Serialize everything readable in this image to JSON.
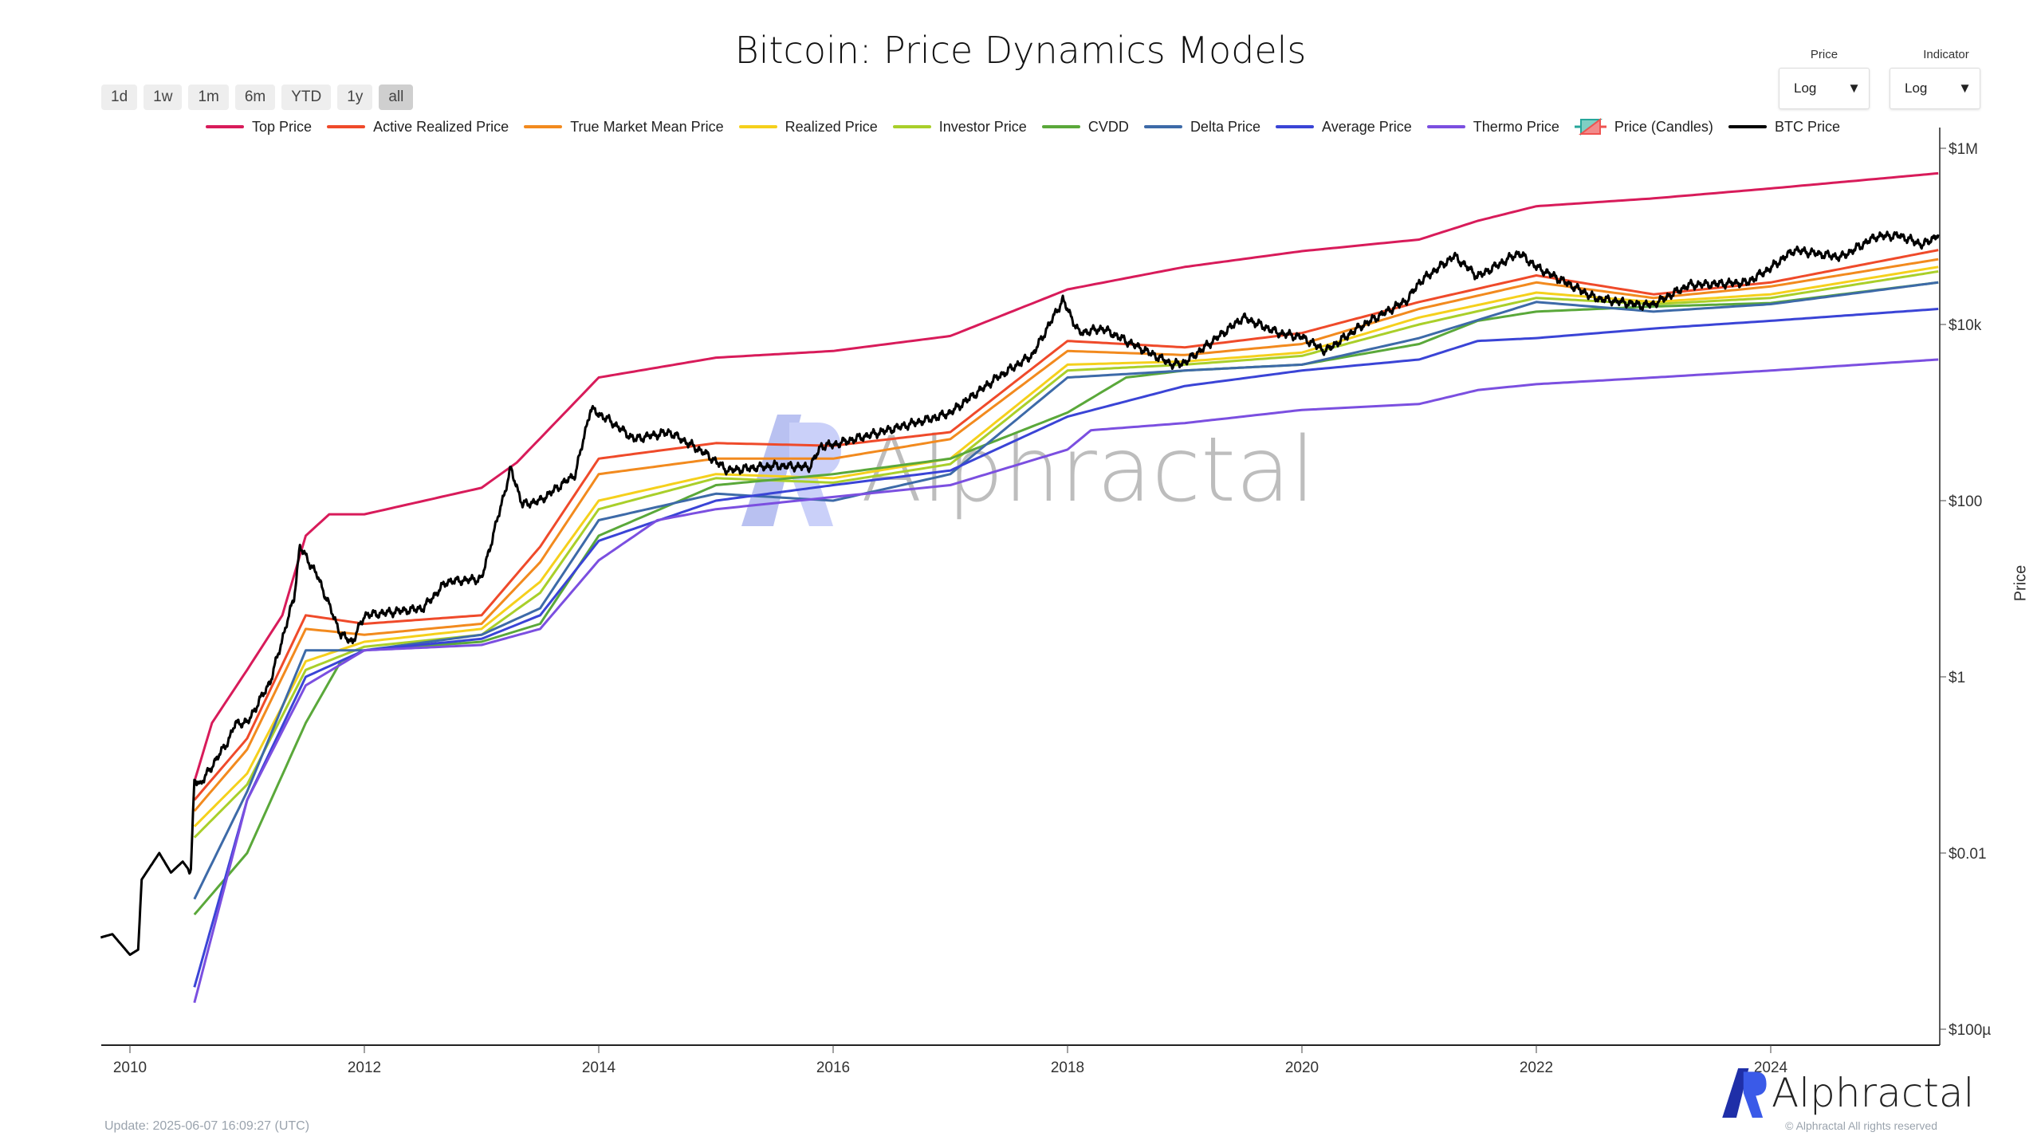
{
  "title": "Bitcoin: Price Dynamics Models",
  "range_buttons": [
    "1d",
    "1w",
    "1m",
    "6m",
    "YTD",
    "1y",
    "all"
  ],
  "active_range": "all",
  "dropdowns": {
    "price": {
      "label": "Price",
      "value": "Log"
    },
    "indicator": {
      "label": "Indicator",
      "value": "Log"
    }
  },
  "update_text": "Update: 2025-06-07 16:09:27 (UTC)",
  "copyright": "© Alphractal All rights reserved",
  "brand": "Alphractal",
  "colors": {
    "axis": "#222222",
    "accent": "#3a4fd8"
  },
  "chart_data": {
    "type": "line",
    "title": "Bitcoin: Price Dynamics Models",
    "xlabel": "",
    "ylabel": "Price",
    "yscale": "log",
    "xlim": [
      2009.72,
      2025.45
    ],
    "ylim": [
      7e-05,
      1500000
    ],
    "x_ticks": [
      {
        "value": 2010,
        "label": "2010"
      },
      {
        "value": 2012,
        "label": "2012"
      },
      {
        "value": 2014,
        "label": "2014"
      },
      {
        "value": 2016,
        "label": "2016"
      },
      {
        "value": 2018,
        "label": "2018"
      },
      {
        "value": 2020,
        "label": "2020"
      },
      {
        "value": 2022,
        "label": "2022"
      },
      {
        "value": 2024,
        "label": "2024"
      }
    ],
    "y_ticks": [
      {
        "value": 1000000,
        "label": "$1M"
      },
      {
        "value": 10000,
        "label": "$10k"
      },
      {
        "value": 100,
        "label": "$100"
      },
      {
        "value": 1,
        "label": "$1"
      },
      {
        "value": 0.01,
        "label": "$0.01"
      },
      {
        "value": 0.0001,
        "label": "$100µ"
      }
    ],
    "legend_position": "top",
    "series": [
      {
        "name": "Top Price",
        "color": "#d81b5a",
        "points": [
          [
            2010.55,
            0.065
          ],
          [
            2010.7,
            0.3
          ],
          [
            2011.0,
            1.2
          ],
          [
            2011.3,
            5
          ],
          [
            2011.5,
            40
          ],
          [
            2011.7,
            70
          ],
          [
            2012,
            70
          ],
          [
            2013,
            140
          ],
          [
            2013.3,
            270
          ],
          [
            2013.6,
            700
          ],
          [
            2014,
            2500
          ],
          [
            2015,
            4200
          ],
          [
            2016,
            5000
          ],
          [
            2017,
            7400
          ],
          [
            2018,
            25000
          ],
          [
            2019,
            45000
          ],
          [
            2020,
            68000
          ],
          [
            2021,
            92000
          ],
          [
            2021.5,
            150000
          ],
          [
            2022,
            220000
          ],
          [
            2023,
            270000
          ],
          [
            2024,
            350000
          ],
          [
            2025.43,
            520000
          ]
        ]
      },
      {
        "name": "Active Realized Price",
        "color": "#ef4a2a",
        "points": [
          [
            2010.55,
            0.04
          ],
          [
            2011,
            0.2
          ],
          [
            2011.5,
            5
          ],
          [
            2012,
            4
          ],
          [
            2013,
            5
          ],
          [
            2013.5,
            30
          ],
          [
            2014,
            300
          ],
          [
            2015,
            450
          ],
          [
            2016,
            420
          ],
          [
            2017,
            600
          ],
          [
            2018,
            6500
          ],
          [
            2019,
            5500
          ],
          [
            2020,
            8000
          ],
          [
            2021,
            18000
          ],
          [
            2022,
            36000
          ],
          [
            2023,
            22000
          ],
          [
            2024,
            30000
          ],
          [
            2025.43,
            70000
          ]
        ]
      },
      {
        "name": "True Market Mean Price",
        "color": "#f28a1e",
        "points": [
          [
            2010.55,
            0.03
          ],
          [
            2011,
            0.15
          ],
          [
            2011.5,
            3.5
          ],
          [
            2012,
            3
          ],
          [
            2013,
            4
          ],
          [
            2013.5,
            20
          ],
          [
            2014,
            200
          ],
          [
            2015,
            300
          ],
          [
            2016,
            300
          ],
          [
            2017,
            500
          ],
          [
            2018,
            5000
          ],
          [
            2019,
            4500
          ],
          [
            2020,
            6000
          ],
          [
            2021,
            15000
          ],
          [
            2022,
            30000
          ],
          [
            2023,
            20000
          ],
          [
            2024,
            27000
          ],
          [
            2025.43,
            55000
          ]
        ]
      },
      {
        "name": "Realized Price",
        "color": "#f5d01c",
        "points": [
          [
            2010.55,
            0.02
          ],
          [
            2011,
            0.08
          ],
          [
            2011.5,
            1.5
          ],
          [
            2012,
            2.5
          ],
          [
            2013,
            3.5
          ],
          [
            2013.5,
            12
          ],
          [
            2014,
            100
          ],
          [
            2015,
            200
          ],
          [
            2016,
            180
          ],
          [
            2017,
            300
          ],
          [
            2018,
            3500
          ],
          [
            2019,
            3800
          ],
          [
            2020,
            4800
          ],
          [
            2021,
            12000
          ],
          [
            2022,
            23000
          ],
          [
            2023,
            18000
          ],
          [
            2024,
            22000
          ],
          [
            2025.43,
            45000
          ]
        ]
      },
      {
        "name": "Investor Price",
        "color": "#a9cf2a",
        "points": [
          [
            2010.55,
            0.015
          ],
          [
            2011,
            0.06
          ],
          [
            2011.5,
            1.2
          ],
          [
            2012,
            2.2
          ],
          [
            2013,
            3
          ],
          [
            2013.5,
            9
          ],
          [
            2014,
            80
          ],
          [
            2015,
            180
          ],
          [
            2016,
            160
          ],
          [
            2017,
            260
          ],
          [
            2018,
            3000
          ],
          [
            2019,
            3500
          ],
          [
            2020,
            4400
          ],
          [
            2021,
            10000
          ],
          [
            2022,
            20000
          ],
          [
            2023,
            17000
          ],
          [
            2024,
            20000
          ],
          [
            2025.43,
            40000
          ]
        ]
      },
      {
        "name": "CVDD",
        "color": "#5aa83a",
        "points": [
          [
            2010.55,
            0.002
          ],
          [
            2011,
            0.01
          ],
          [
            2011.5,
            0.3
          ],
          [
            2011.8,
            1.5
          ],
          [
            2012,
            2
          ],
          [
            2013,
            2.5
          ],
          [
            2013.5,
            4
          ],
          [
            2014,
            40
          ],
          [
            2015,
            150
          ],
          [
            2016,
            200
          ],
          [
            2017,
            300
          ],
          [
            2018,
            1000
          ],
          [
            2018.5,
            2500
          ],
          [
            2019,
            3000
          ],
          [
            2020,
            3500
          ],
          [
            2021,
            6000
          ],
          [
            2021.5,
            11000
          ],
          [
            2022,
            14000
          ],
          [
            2023,
            16000
          ],
          [
            2024,
            17500
          ],
          [
            2025.43,
            30000
          ]
        ]
      },
      {
        "name": "Delta Price",
        "color": "#3d6aa8",
        "points": [
          [
            2010.55,
            0.003
          ],
          [
            2011,
            0.05
          ],
          [
            2011.5,
            2
          ],
          [
            2012,
            2
          ],
          [
            2013,
            3
          ],
          [
            2013.5,
            6
          ],
          [
            2014,
            60
          ],
          [
            2015,
            120
          ],
          [
            2016,
            100
          ],
          [
            2017,
            200
          ],
          [
            2018,
            2500
          ],
          [
            2019,
            3000
          ],
          [
            2020,
            3500
          ],
          [
            2021,
            7000
          ],
          [
            2022,
            18000
          ],
          [
            2023,
            14000
          ],
          [
            2024,
            17000
          ],
          [
            2025.43,
            30000
          ]
        ]
      },
      {
        "name": "Average Price",
        "color": "#3a44d6",
        "points": [
          [
            2010.55,
            0.0003
          ],
          [
            2011,
            0.04
          ],
          [
            2011.5,
            1
          ],
          [
            2012,
            2
          ],
          [
            2013,
            2.7
          ],
          [
            2013.5,
            5
          ],
          [
            2014,
            35
          ],
          [
            2015,
            100
          ],
          [
            2016,
            150
          ],
          [
            2017,
            220
          ],
          [
            2018,
            900
          ],
          [
            2019,
            2000
          ],
          [
            2020,
            3000
          ],
          [
            2021,
            4000
          ],
          [
            2021.5,
            6500
          ],
          [
            2022,
            7000
          ],
          [
            2023,
            9000
          ],
          [
            2024,
            11000
          ],
          [
            2025.43,
            15000
          ]
        ]
      },
      {
        "name": "Thermo Price",
        "color": "#7b4fe0",
        "points": [
          [
            2010.55,
            0.0002
          ],
          [
            2011,
            0.04
          ],
          [
            2011.5,
            0.8
          ],
          [
            2012,
            2
          ],
          [
            2013,
            2.3
          ],
          [
            2013.5,
            3.5
          ],
          [
            2014,
            21
          ],
          [
            2014.5,
            60
          ],
          [
            2015,
            80
          ],
          [
            2016,
            110
          ],
          [
            2017,
            150
          ],
          [
            2018,
            380
          ],
          [
            2018.2,
            630
          ],
          [
            2019,
            760
          ],
          [
            2020,
            1070
          ],
          [
            2021,
            1250
          ],
          [
            2021.5,
            1800
          ],
          [
            2022,
            2100
          ],
          [
            2023,
            2500
          ],
          [
            2024,
            3000
          ],
          [
            2025.43,
            4000
          ]
        ]
      },
      {
        "name": "Price (Candles)",
        "color": "#26a69a",
        "points": []
      },
      {
        "name": "BTC Price",
        "color": "#000000",
        "points": [
          [
            2009.75,
            0.0011
          ],
          [
            2009.85,
            0.0012
          ],
          [
            2010.0,
            0.0007
          ],
          [
            2010.07,
            0.0008
          ],
          [
            2010.1,
            0.005
          ],
          [
            2010.25,
            0.01
          ],
          [
            2010.35,
            0.006
          ],
          [
            2010.45,
            0.008
          ],
          [
            2010.52,
            0.006
          ],
          [
            2010.55,
            0.07
          ],
          [
            2010.6,
            0.06
          ],
          [
            2010.85,
            0.2
          ],
          [
            2010.9,
            0.3
          ],
          [
            2011.0,
            0.3
          ],
          [
            2011.2,
            0.9
          ],
          [
            2011.4,
            8
          ],
          [
            2011.45,
            30
          ],
          [
            2011.6,
            14
          ],
          [
            2011.8,
            3
          ],
          [
            2011.9,
            2.5
          ],
          [
            2012.0,
            5
          ],
          [
            2012.5,
            6
          ],
          [
            2012.7,
            12
          ],
          [
            2013.0,
            13
          ],
          [
            2013.25,
            230
          ],
          [
            2013.35,
            90
          ],
          [
            2013.5,
            100
          ],
          [
            2013.8,
            200
          ],
          [
            2013.93,
            1100
          ],
          [
            2014.1,
            800
          ],
          [
            2014.3,
            500
          ],
          [
            2014.6,
            600
          ],
          [
            2014.9,
            350
          ],
          [
            2015.1,
            220
          ],
          [
            2015.5,
            250
          ],
          [
            2015.8,
            240
          ],
          [
            2015.9,
            420
          ],
          [
            2016.0,
            430
          ],
          [
            2016.5,
            650
          ],
          [
            2016.9,
            900
          ],
          [
            2017.0,
            1000
          ],
          [
            2017.4,
            2500
          ],
          [
            2017.7,
            4500
          ],
          [
            2017.96,
            19000
          ],
          [
            2018.1,
            8000
          ],
          [
            2018.3,
            9000
          ],
          [
            2018.5,
            6500
          ],
          [
            2018.9,
            3500
          ],
          [
            2019.0,
            3700
          ],
          [
            2019.5,
            12000
          ],
          [
            2019.8,
            8000
          ],
          [
            2020.0,
            7200
          ],
          [
            2020.2,
            5000
          ],
          [
            2020.5,
            9500
          ],
          [
            2020.9,
            19000
          ],
          [
            2021.0,
            30000
          ],
          [
            2021.3,
            60000
          ],
          [
            2021.5,
            35000
          ],
          [
            2021.85,
            65000
          ],
          [
            2022.0,
            45000
          ],
          [
            2022.5,
            20000
          ],
          [
            2022.9,
            16500
          ],
          [
            2023.0,
            17000
          ],
          [
            2023.3,
            28000
          ],
          [
            2023.8,
            30000
          ],
          [
            2024.0,
            44000
          ],
          [
            2024.2,
            70000
          ],
          [
            2024.6,
            58000
          ],
          [
            2024.9,
            100000
          ],
          [
            2025.1,
            102000
          ],
          [
            2025.3,
            80000
          ],
          [
            2025.43,
            105000
          ]
        ]
      }
    ]
  }
}
